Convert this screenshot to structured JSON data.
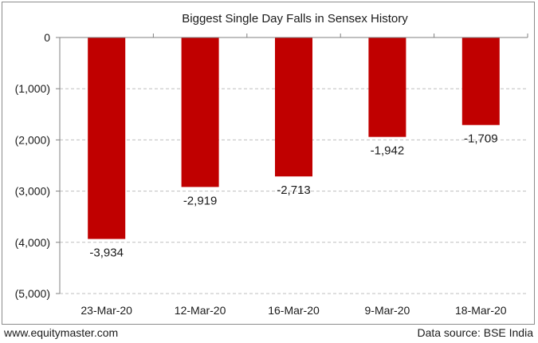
{
  "footer": {
    "website": "www.equitymaster.com",
    "source": "Data source: BSE India"
  },
  "colors": {
    "bar": "#c00000",
    "grid": "#bfbfbf",
    "axis": "#808080",
    "text": "#1a1a1a"
  },
  "chart_data": {
    "type": "bar",
    "title": "Biggest Single Day Falls in Sensex History",
    "xlabel": "",
    "ylabel": "",
    "categories": [
      "23-Mar-20",
      "12-Mar-20",
      "16-Mar-20",
      "9-Mar-20",
      "18-Mar-20"
    ],
    "values": [
      -3934,
      -2919,
      -2713,
      -1942,
      -1709
    ],
    "value_labels": [
      "-3,934",
      "-2,919",
      "-2,713",
      "-1,942",
      "-1,709"
    ],
    "ylim": [
      -5000,
      0
    ],
    "yticks": [
      0,
      -1000,
      -2000,
      -3000,
      -4000,
      -5000
    ],
    "ytick_labels": [
      "0",
      "(1,000)",
      "(2,000)",
      "(3,000)",
      "(4,000)",
      "(5,000)"
    ],
    "grid": true,
    "legend": "none"
  }
}
